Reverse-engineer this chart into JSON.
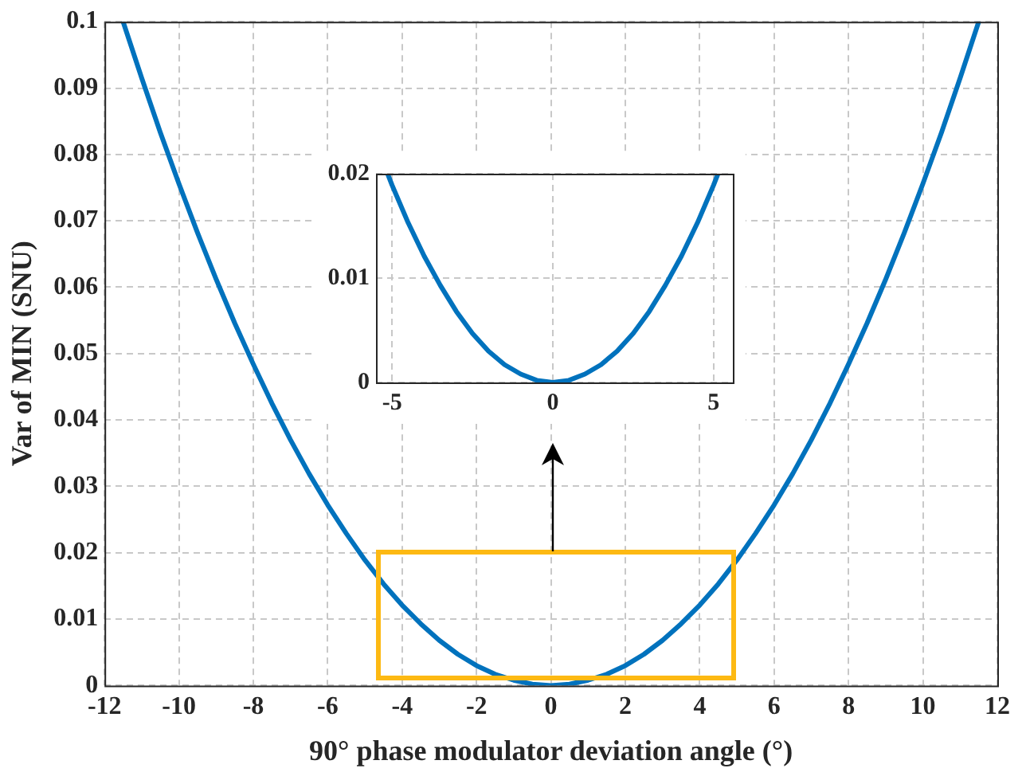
{
  "chart_data": [
    {
      "type": "line",
      "xlabel": "90° phase modulator deviation angle (°)",
      "ylabel": "Var of MIN (SNU)",
      "xlim": [
        -12,
        12
      ],
      "ylim": [
        0,
        0.1
      ],
      "xticks": [
        -12,
        -10,
        -8,
        -6,
        -4,
        -2,
        0,
        2,
        4,
        6,
        8,
        10,
        12
      ],
      "yticks": [
        0,
        0.01,
        0.02,
        0.03,
        0.04,
        0.05,
        0.06,
        0.07,
        0.08,
        0.09,
        0.1
      ],
      "grid": true,
      "legend": false,
      "marker": "none",
      "line_style": "solid",
      "series": [
        {
          "color": "#0072bd",
          "x": [
            -11.5,
            -11,
            -10.5,
            -10,
            -9.5,
            -9,
            -8.5,
            -8,
            -7.5,
            -7,
            -6.5,
            -6,
            -5.5,
            -5,
            -4.5,
            -4,
            -3.5,
            -3,
            -2.5,
            -2,
            -1.5,
            -1,
            -0.5,
            0,
            0.5,
            1,
            1.5,
            2,
            2.5,
            3,
            3.5,
            4,
            4.5,
            5,
            5.5,
            6,
            6.5,
            7,
            7.5,
            8,
            8.5,
            9,
            9.5,
            10,
            10.5,
            11,
            11.5
          ],
          "values": [
            0.1,
            0.0915,
            0.0833,
            0.0756,
            0.0682,
            0.0612,
            0.0546,
            0.0484,
            0.0425,
            0.037,
            0.0319,
            0.0272,
            0.0229,
            0.0189,
            0.0153,
            0.0121,
            0.0093,
            0.0068,
            0.0047,
            0.003,
            0.0017,
            0.0008,
            0.0002,
            0,
            0.0002,
            0.0008,
            0.0017,
            0.003,
            0.0047,
            0.0068,
            0.0093,
            0.0121,
            0.0153,
            0.0189,
            0.0229,
            0.0272,
            0.0319,
            0.037,
            0.0425,
            0.0484,
            0.0546,
            0.0612,
            0.0682,
            0.0756,
            0.0833,
            0.0915,
            0.1
          ]
        }
      ]
    },
    {
      "type": "line",
      "xlim": [
        -5.5,
        5.6
      ],
      "ylim": [
        0,
        0.02
      ],
      "xticks": [
        -5,
        0,
        5
      ],
      "yticks": [
        0,
        0.01,
        0.02
      ],
      "grid": true,
      "legend": false,
      "marker": "none",
      "line_style": "solid",
      "series": [
        {
          "color": "#0072bd",
          "x": [
            -5.14,
            -5,
            -4.5,
            -4,
            -3.5,
            -3,
            -2.5,
            -2,
            -1.5,
            -1,
            -0.5,
            0,
            0.5,
            1,
            1.5,
            2,
            2.5,
            3,
            3.5,
            4,
            4.5,
            5,
            5.14
          ],
          "values": [
            0.02,
            0.0189,
            0.0153,
            0.0121,
            0.0093,
            0.0068,
            0.0047,
            0.003,
            0.0017,
            0.0008,
            0.0002,
            0,
            0.0002,
            0.0008,
            0.0017,
            0.003,
            0.0047,
            0.0068,
            0.0093,
            0.0121,
            0.0153,
            0.0189,
            0.02
          ]
        }
      ]
    }
  ]
}
